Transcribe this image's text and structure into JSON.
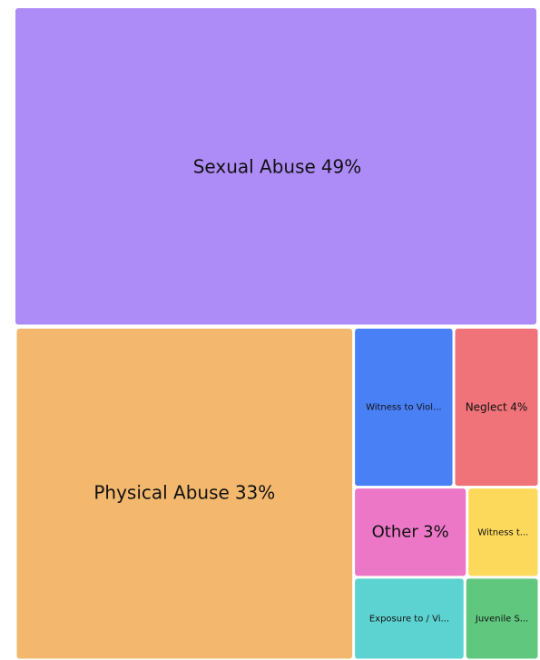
{
  "chart_data": {
    "type": "treemap",
    "categories": [
      "Sexual Abuse",
      "Physical Abuse",
      "Witness to Viol...",
      "Neglect",
      "Other",
      "Witness t...",
      "Exposure to / Vi...",
      "Juvenile S..."
    ],
    "values": [
      49,
      33,
      4.7,
      4,
      3,
      1.9,
      2.7,
      1.8
    ],
    "value_labels": [
      "49%",
      "33%",
      null,
      "4%",
      "3%",
      null,
      null,
      null
    ],
    "colors": [
      "#ae8cf7",
      "#f3b86d",
      "#4a80f5",
      "#f07379",
      "#eb77c6",
      "#fdd95b",
      "#5cd3d1",
      "#60c77f"
    ]
  }
}
